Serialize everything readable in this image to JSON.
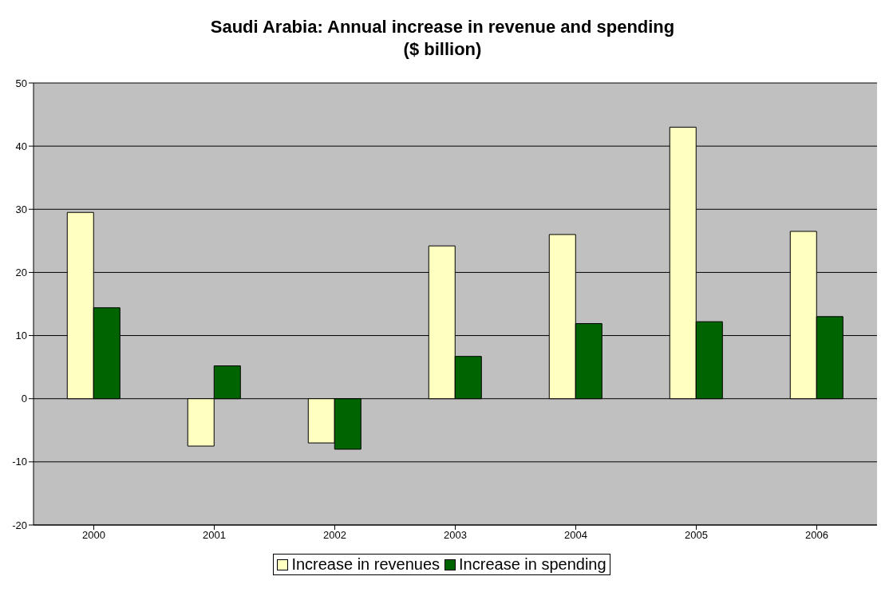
{
  "chart_data": {
    "type": "bar",
    "title": "Saudi Arabia: Annual increase in revenue and spending",
    "subtitle": "($ billion)",
    "categories": [
      "2000",
      "2001",
      "2002",
      "2003",
      "2004",
      "2005",
      "2006"
    ],
    "series": [
      {
        "name": "Increase in revenues",
        "color": "#ffffc0",
        "values": [
          29.5,
          -7.5,
          -7,
          24.2,
          26,
          43,
          26.5
        ]
      },
      {
        "name": "Increase in spending",
        "color": "#006400",
        "values": [
          14.4,
          5.2,
          -8,
          6.7,
          11.9,
          12.2,
          13
        ]
      }
    ],
    "ylim": [
      -20,
      50
    ],
    "yticks": [
      -20,
      -10,
      0,
      10,
      20,
      30,
      40,
      50
    ],
    "grid": "y",
    "legend": "bottom"
  }
}
